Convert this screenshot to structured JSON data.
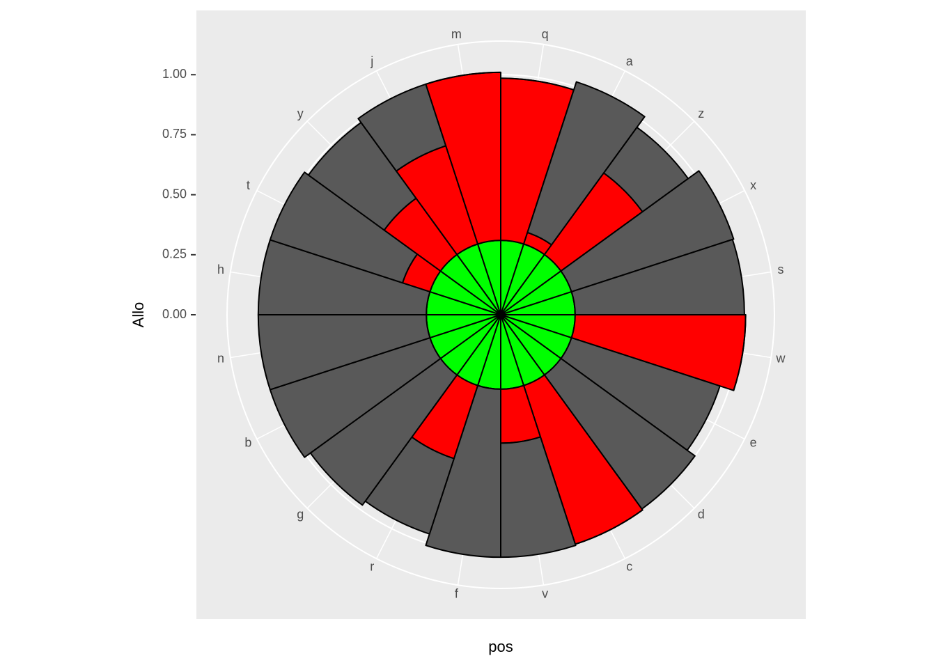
{
  "chart_data": {
    "type": "polar-stacked-bar",
    "x_label": "pos",
    "y_label": "Allo",
    "categories": [
      "q",
      "a",
      "z",
      "x",
      "s",
      "w",
      "e",
      "d",
      "c",
      "v",
      "f",
      "r",
      "g",
      "b",
      "n",
      "h",
      "t",
      "y",
      "j",
      "m"
    ],
    "series": [
      {
        "color": "#00ff00",
        "values": [
          0.31,
          0.31,
          0.31,
          0.31,
          0.31,
          0.31,
          0.31,
          0.31,
          0.31,
          0.31,
          0.31,
          0.31,
          0.31,
          0.31,
          0.31,
          0.31,
          0.31,
          0.31,
          0.31,
          0.31
        ]
      },
      {
        "color": "#ff0000",
        "values": [
          0.675,
          0.05,
          0.42,
          0,
          0,
          0.71,
          0,
          0,
          0.695,
          0.225,
          0,
          0.32,
          0,
          0,
          0,
          0,
          0.12,
          0.29,
          0.43,
          0.7
        ]
      },
      {
        "color": "#595959",
        "values": [
          0,
          0.66,
          0.235,
          0.71,
          0.705,
          0,
          0.65,
          0.69,
          0,
          0.475,
          0.7,
          0.33,
          0.67,
          0.7,
          0.7,
          0.7,
          0.58,
          0.39,
          0.27,
          0
        ]
      }
    ],
    "ylim": [
      0,
      1.14
    ],
    "yticks": [
      {
        "value": 0,
        "label": "0.00"
      },
      {
        "value": 0.25,
        "label": "0.25"
      },
      {
        "value": 0.5,
        "label": "0.50"
      },
      {
        "value": 0.75,
        "label": "0.75"
      },
      {
        "value": 1,
        "label": "1.00"
      }
    ]
  }
}
